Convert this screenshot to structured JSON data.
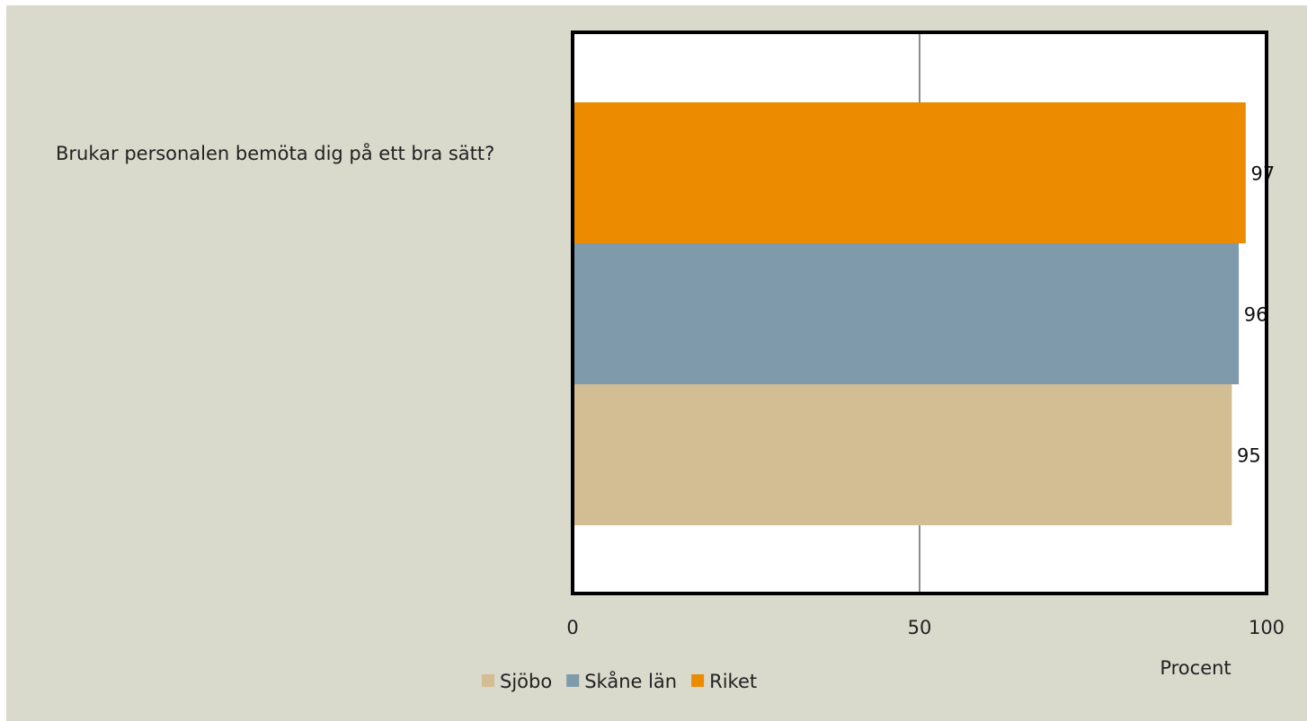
{
  "chart_data": {
    "type": "bar",
    "orientation": "horizontal",
    "categories": [
      "Brukar personalen bemöta dig på ett bra sätt?"
    ],
    "series": [
      {
        "name": "Sjöbo",
        "values": [
          95
        ],
        "color": "#d3bd93"
      },
      {
        "name": "Skåne län",
        "values": [
          96
        ],
        "color": "#7e9aab"
      },
      {
        "name": "Riket",
        "values": [
          97
        ],
        "color": "#ec8b00"
      }
    ],
    "data_labels": [
      "95",
      "96",
      "97"
    ],
    "x_ticks": [
      "0",
      "50",
      "100"
    ],
    "xlim": [
      0,
      100
    ],
    "xlabel": "Procent",
    "grid": "vertical",
    "legend_position": "bottom"
  }
}
